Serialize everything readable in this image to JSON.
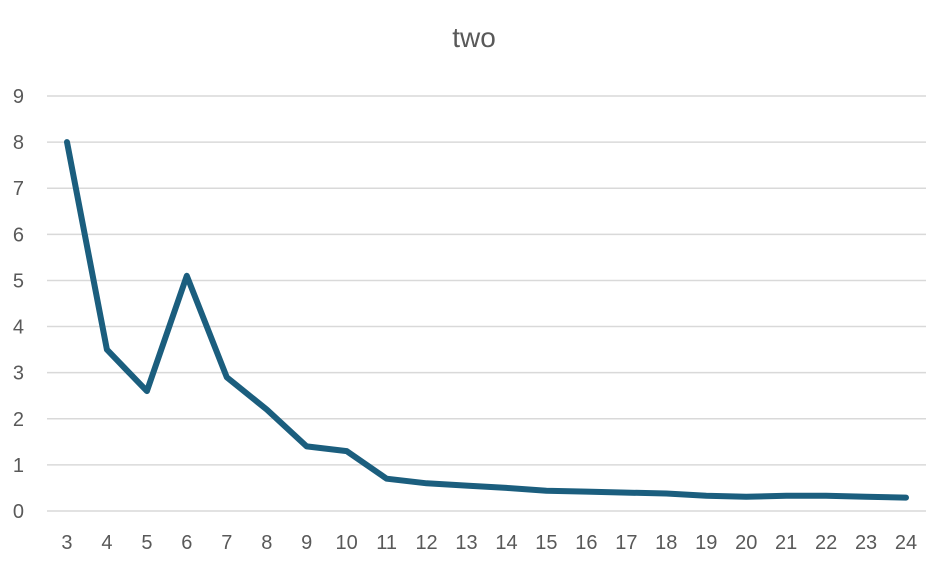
{
  "chart_data": {
    "type": "line",
    "title": "two",
    "xlabel": "",
    "ylabel": "",
    "categories": [
      "3",
      "4",
      "5",
      "6",
      "7",
      "8",
      "9",
      "10",
      "11",
      "12",
      "13",
      "14",
      "15",
      "16",
      "17",
      "18",
      "19",
      "20",
      "21",
      "22",
      "23",
      "24"
    ],
    "series": [
      {
        "name": "",
        "color": "#1b5e7e",
        "values": [
          8.0,
          3.5,
          2.6,
          5.1,
          2.9,
          2.2,
          1.4,
          1.3,
          0.7,
          0.6,
          0.55,
          0.5,
          0.44,
          0.42,
          0.4,
          0.38,
          0.33,
          0.31,
          0.33,
          0.33,
          0.31,
          0.29
        ]
      }
    ],
    "ylim": [
      0,
      9
    ],
    "yticks": [
      "0",
      "1",
      "2",
      "3",
      "4",
      "5",
      "6",
      "7",
      "8",
      "9"
    ],
    "grid": true,
    "legend": "none"
  }
}
